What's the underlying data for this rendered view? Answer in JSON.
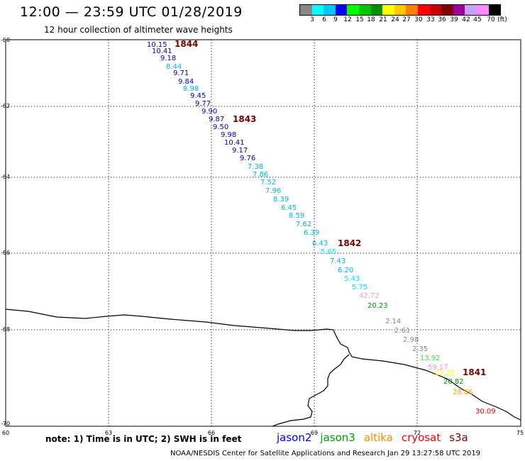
{
  "header": {
    "title": "12:00 — 23:59 UTC 01/28/2019",
    "subtitle": "12 hour collection of altimeter wave heights"
  },
  "legend": {
    "colors": [
      "#888888",
      "#00ffff",
      "#00c8ff",
      "#0000ff",
      "#00ff00",
      "#00c800",
      "#009000",
      "#ffff00",
      "#ffc800",
      "#ff8000",
      "#ff0000",
      "#c80000",
      "#800000",
      "#a000a0",
      "#c8a0ff",
      "#ff88ff",
      "#000000"
    ],
    "labels": [
      "3",
      "6",
      "9",
      "12",
      "15",
      "18",
      "21",
      "24",
      "27",
      "30",
      "33",
      "36",
      "39",
      "42",
      "45",
      "70",
      "(ft)"
    ]
  },
  "axes": {
    "lon_ticks": [
      "60",
      "63",
      "66",
      "69",
      "72",
      "75"
    ],
    "lat_ticks": [
      "-60",
      "-62",
      "-64",
      "-66",
      "-68",
      "-70"
    ]
  },
  "passes": [
    "1844",
    "1843",
    "1842",
    "1841"
  ],
  "observations": [
    {
      "v": "10.15",
      "c": "#0000c8"
    },
    {
      "v": "10.41",
      "c": "#0000a0"
    },
    {
      "v": "9.18",
      "c": "#0000c8"
    },
    {
      "v": "8.44",
      "c": "#00b4e6"
    },
    {
      "v": "9.71",
      "c": "#0000c8"
    },
    {
      "v": "9.84",
      "c": "#0000c8"
    },
    {
      "v": "8.98",
      "c": "#00b4e6"
    },
    {
      "v": "9.45",
      "c": "#0000c8"
    },
    {
      "v": "9.77",
      "c": "#0000c8"
    },
    {
      "v": "9.90",
      "c": "#0000c8"
    },
    {
      "v": "9.87",
      "c": "#0000c8"
    },
    {
      "v": "9.50",
      "c": "#0000c8"
    },
    {
      "v": "9.98",
      "c": "#0000c8"
    },
    {
      "v": "10.41",
      "c": "#0000a0"
    },
    {
      "v": "9.17",
      "c": "#0000c8"
    },
    {
      "v": "9.76",
      "c": "#0000c8"
    },
    {
      "v": "7.38",
      "c": "#00b4e6"
    },
    {
      "v": "7.86",
      "c": "#00b4e6"
    },
    {
      "v": "7.52",
      "c": "#00b4e6"
    },
    {
      "v": "7.96",
      "c": "#00b4e6"
    },
    {
      "v": "8.39",
      "c": "#00b4e6"
    },
    {
      "v": "6.45",
      "c": "#00b4e6"
    },
    {
      "v": "8.59",
      "c": "#00b4e6"
    },
    {
      "v": "7.62",
      "c": "#00b4e6"
    },
    {
      "v": "6.39",
      "c": "#00b4e6"
    },
    {
      "v": "6.43",
      "c": "#00b4e6"
    },
    {
      "v": "5.65",
      "c": "#00e6ff"
    },
    {
      "v": "7.43",
      "c": "#00b4e6"
    },
    {
      "v": "6.20",
      "c": "#00b4e6"
    },
    {
      "v": "5.43",
      "c": "#00e6ff"
    },
    {
      "v": "5.75",
      "c": "#00e6ff"
    },
    {
      "v": "42.72",
      "c": "#c8a0ff"
    },
    {
      "v": "20.23",
      "c": "#009000"
    },
    {
      "v": "2.14",
      "c": "#888888"
    },
    {
      "v": "2.61",
      "c": "#888888"
    },
    {
      "v": "2.98",
      "c": "#888888"
    },
    {
      "v": "2.35",
      "c": "#888888"
    },
    {
      "v": "13.92",
      "c": "#40e040"
    },
    {
      "v": "59.17",
      "c": "#ff88ff"
    },
    {
      "v": "22.22",
      "c": "#ffff00"
    },
    {
      "v": "20.82",
      "c": "#009000"
    },
    {
      "v": "28.86",
      "c": "#ffa000"
    },
    {
      "v": "30.09",
      "c": "#ff0000"
    }
  ],
  "note": "note: 1) Time is in UTC; 2) SWH is in feet",
  "satellites": [
    {
      "name": "jason2",
      "color": "#0000ff"
    },
    {
      "name": "jason3",
      "color": "#00a000"
    },
    {
      "name": "altika",
      "color": "#ff8c00"
    },
    {
      "name": "cryosat",
      "color": "#ff0000"
    },
    {
      "name": "s3a",
      "color": "#800000"
    }
  ],
  "footer": "NOAA/NESDIS Center for Satellite Applications and Research   Jan 29 13:27:58 UTC 2019"
}
